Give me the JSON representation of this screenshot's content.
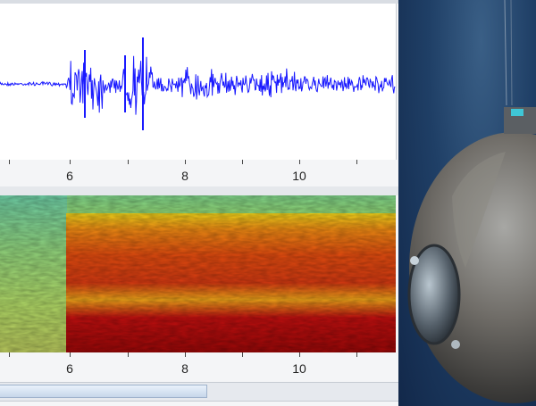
{
  "waveform_axis": {
    "ticks": [
      "6",
      "8",
      "10"
    ]
  },
  "spectrogram_axis": {
    "ticks": [
      "6",
      "8",
      "10"
    ]
  },
  "colors": {
    "waveform": "#1a1aff",
    "spectrogram_low": "#2fb7e0",
    "spectrogram_mid": "#f2e21c",
    "spectrogram_high": "#c01010",
    "water": "#1f3f66"
  },
  "photo": {
    "subject": "deep-sea-submersible-photo"
  }
}
